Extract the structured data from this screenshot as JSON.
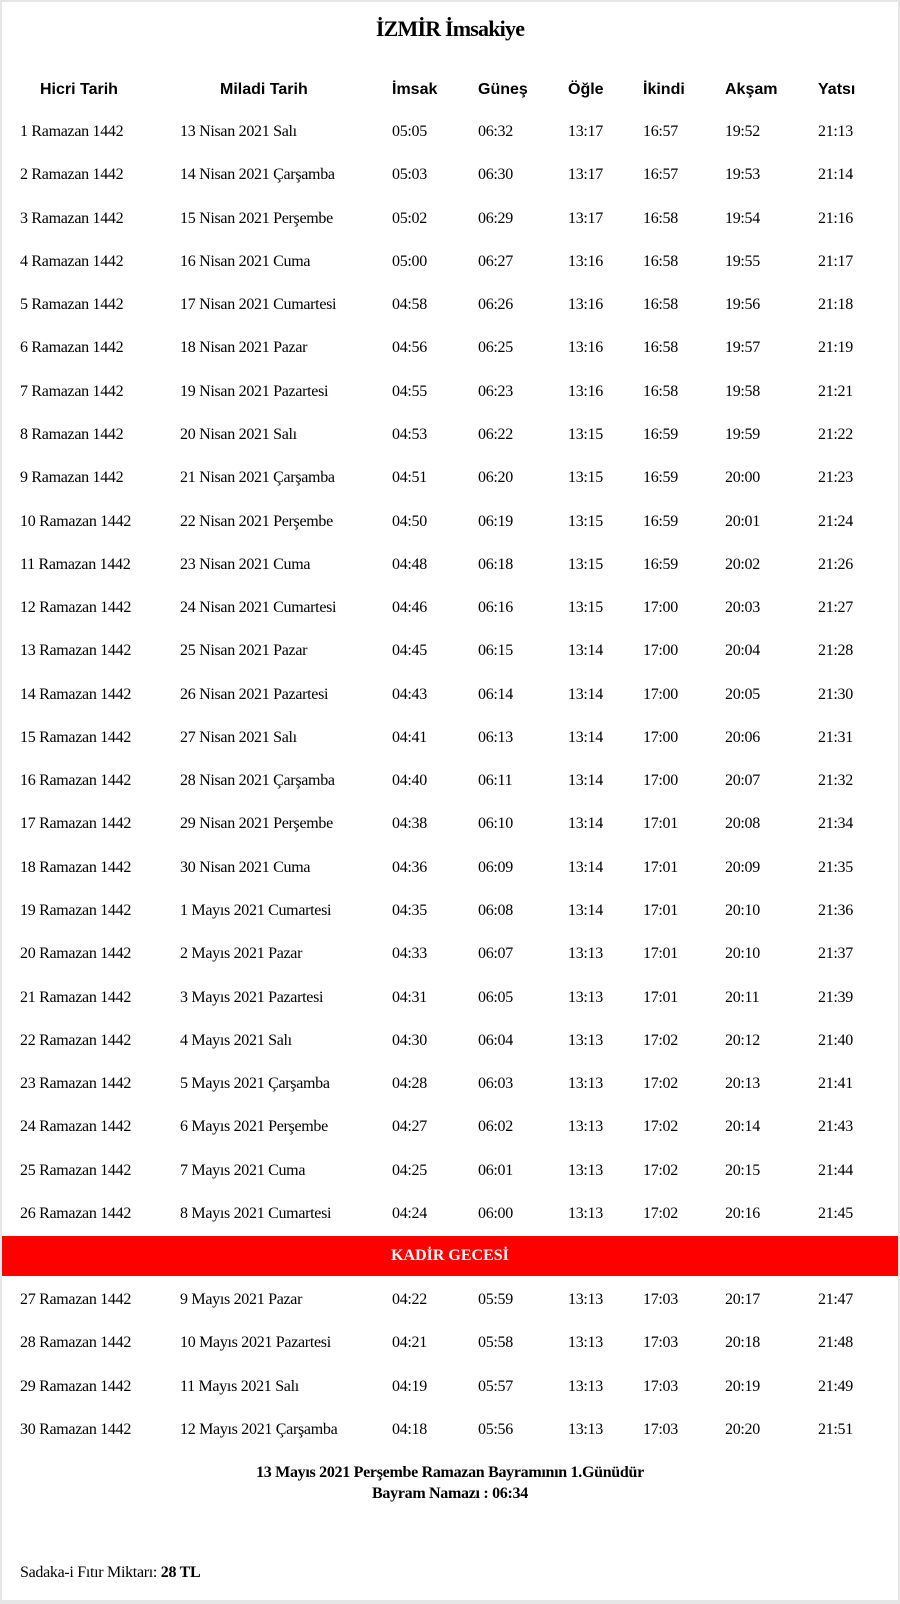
{
  "title": "İZMİR İmsakiye",
  "columns": [
    "Hicri Tarih",
    "Miladi Tarih",
    "İmsak",
    "Güneş",
    "Öğle",
    "İkindi",
    "Akşam",
    "Yatsı"
  ],
  "rows": [
    [
      "1 Ramazan 1442",
      "13 Nisan 2021 Salı",
      "05:05",
      "06:32",
      "13:17",
      "16:57",
      "19:52",
      "21:13"
    ],
    [
      "2 Ramazan 1442",
      "14 Nisan 2021 Çarşamba",
      "05:03",
      "06:30",
      "13:17",
      "16:57",
      "19:53",
      "21:14"
    ],
    [
      "3 Ramazan 1442",
      "15 Nisan 2021 Perşembe",
      "05:02",
      "06:29",
      "13:17",
      "16:58",
      "19:54",
      "21:16"
    ],
    [
      "4 Ramazan 1442",
      "16 Nisan 2021 Cuma",
      "05:00",
      "06:27",
      "13:16",
      "16:58",
      "19:55",
      "21:17"
    ],
    [
      "5 Ramazan 1442",
      "17 Nisan 2021 Cumartesi",
      "04:58",
      "06:26",
      "13:16",
      "16:58",
      "19:56",
      "21:18"
    ],
    [
      "6 Ramazan 1442",
      "18 Nisan 2021 Pazar",
      "04:56",
      "06:25",
      "13:16",
      "16:58",
      "19:57",
      "21:19"
    ],
    [
      "7 Ramazan 1442",
      "19 Nisan 2021 Pazartesi",
      "04:55",
      "06:23",
      "13:16",
      "16:58",
      "19:58",
      "21:21"
    ],
    [
      "8 Ramazan 1442",
      "20 Nisan 2021 Salı",
      "04:53",
      "06:22",
      "13:15",
      "16:59",
      "19:59",
      "21:22"
    ],
    [
      "9 Ramazan 1442",
      "21 Nisan 2021 Çarşamba",
      "04:51",
      "06:20",
      "13:15",
      "16:59",
      "20:00",
      "21:23"
    ],
    [
      "10 Ramazan 1442",
      "22 Nisan 2021 Perşembe",
      "04:50",
      "06:19",
      "13:15",
      "16:59",
      "20:01",
      "21:24"
    ],
    [
      "11 Ramazan 1442",
      "23 Nisan 2021 Cuma",
      "04:48",
      "06:18",
      "13:15",
      "16:59",
      "20:02",
      "21:26"
    ],
    [
      "12 Ramazan 1442",
      "24 Nisan 2021 Cumartesi",
      "04:46",
      "06:16",
      "13:15",
      "17:00",
      "20:03",
      "21:27"
    ],
    [
      "13 Ramazan 1442",
      "25 Nisan 2021 Pazar",
      "04:45",
      "06:15",
      "13:14",
      "17:00",
      "20:04",
      "21:28"
    ],
    [
      "14 Ramazan 1442",
      "26 Nisan 2021 Pazartesi",
      "04:43",
      "06:14",
      "13:14",
      "17:00",
      "20:05",
      "21:30"
    ],
    [
      "15 Ramazan 1442",
      "27 Nisan 2021 Salı",
      "04:41",
      "06:13",
      "13:14",
      "17:00",
      "20:06",
      "21:31"
    ],
    [
      "16 Ramazan 1442",
      "28 Nisan 2021 Çarşamba",
      "04:40",
      "06:11",
      "13:14",
      "17:00",
      "20:07",
      "21:32"
    ],
    [
      "17 Ramazan 1442",
      "29 Nisan 2021 Perşembe",
      "04:38",
      "06:10",
      "13:14",
      "17:01",
      "20:08",
      "21:34"
    ],
    [
      "18 Ramazan 1442",
      "30 Nisan 2021 Cuma",
      "04:36",
      "06:09",
      "13:14",
      "17:01",
      "20:09",
      "21:35"
    ],
    [
      "19 Ramazan 1442",
      "1 Mayıs 2021 Cumartesi",
      "04:35",
      "06:08",
      "13:14",
      "17:01",
      "20:10",
      "21:36"
    ],
    [
      "20 Ramazan 1442",
      "2 Mayıs 2021 Pazar",
      "04:33",
      "06:07",
      "13:13",
      "17:01",
      "20:10",
      "21:37"
    ],
    [
      "21 Ramazan 1442",
      "3 Mayıs 2021 Pazartesi",
      "04:31",
      "06:05",
      "13:13",
      "17:01",
      "20:11",
      "21:39"
    ],
    [
      "22 Ramazan 1442",
      "4 Mayıs 2021 Salı",
      "04:30",
      "06:04",
      "13:13",
      "17:02",
      "20:12",
      "21:40"
    ],
    [
      "23 Ramazan 1442",
      "5 Mayıs 2021 Çarşamba",
      "04:28",
      "06:03",
      "13:13",
      "17:02",
      "20:13",
      "21:41"
    ],
    [
      "24 Ramazan 1442",
      "6 Mayıs 2021 Perşembe",
      "04:27",
      "06:02",
      "13:13",
      "17:02",
      "20:14",
      "21:43"
    ],
    [
      "25 Ramazan 1442",
      "7 Mayıs 2021 Cuma",
      "04:25",
      "06:01",
      "13:13",
      "17:02",
      "20:15",
      "21:44"
    ],
    [
      "26 Ramazan 1442",
      "8 Mayıs 2021 Cumartesi",
      "04:24",
      "06:00",
      "13:13",
      "17:02",
      "20:16",
      "21:45"
    ]
  ],
  "highlight": {
    "label": "KADİR GECESİ",
    "color": "#ff0000"
  },
  "rows_after": [
    [
      "27 Ramazan 1442",
      "9 Mayıs 2021 Pazar",
      "04:22",
      "05:59",
      "13:13",
      "17:03",
      "20:17",
      "21:47"
    ],
    [
      "28 Ramazan 1442",
      "10 Mayıs 2021 Pazartesi",
      "04:21",
      "05:58",
      "13:13",
      "17:03",
      "20:18",
      "21:48"
    ],
    [
      "29 Ramazan 1442",
      "11 Mayıs 2021 Salı",
      "04:19",
      "05:57",
      "13:13",
      "17:03",
      "20:19",
      "21:49"
    ],
    [
      "30 Ramazan 1442",
      "12 Mayıs 2021 Çarşamba",
      "04:18",
      "05:56",
      "13:13",
      "17:03",
      "20:20",
      "21:51"
    ]
  ],
  "footer": {
    "bayram_note": "13 Mayıs 2021 Perşembe Ramazan Bayramının 1.Günüdür",
    "bayram_namazi": "Bayram Namazı : 06:34",
    "sadaka_label": "Sadaka-i Fıtır Miktarı:",
    "sadaka_value": "28 TL"
  }
}
